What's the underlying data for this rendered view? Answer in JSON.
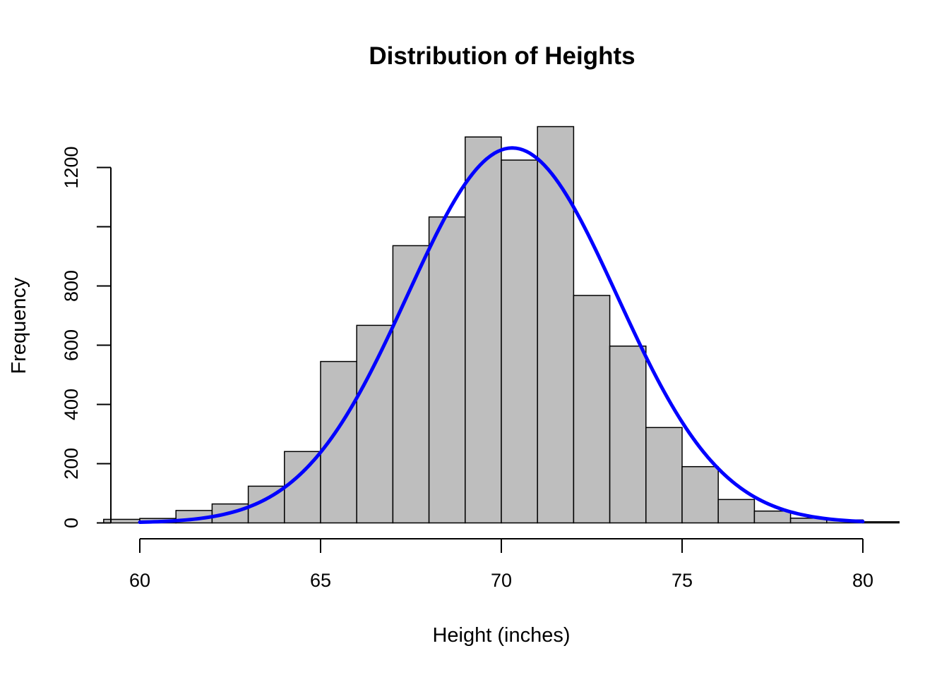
{
  "chart_data": {
    "type": "bar",
    "title": "Distribution of Heights",
    "xlabel": "Height (inches)",
    "ylabel": "Frequency",
    "xlim": [
      59.2,
      80.8
    ],
    "ylim": [
      0,
      1340
    ],
    "x_ticks": [
      60,
      65,
      70,
      75,
      80
    ],
    "y_ticks": [
      0,
      200,
      400,
      600,
      800,
      1000,
      1200
    ],
    "y_tick_labels": [
      "0",
      "200",
      "400",
      "600",
      "800",
      "",
      "1200"
    ],
    "bin_width": 1,
    "bins": [
      {
        "start": 59,
        "count": 12
      },
      {
        "start": 60,
        "count": 15
      },
      {
        "start": 61,
        "count": 42
      },
      {
        "start": 62,
        "count": 64
      },
      {
        "start": 63,
        "count": 124
      },
      {
        "start": 64,
        "count": 241
      },
      {
        "start": 65,
        "count": 545
      },
      {
        "start": 66,
        "count": 667
      },
      {
        "start": 67,
        "count": 936
      },
      {
        "start": 68,
        "count": 1033
      },
      {
        "start": 69,
        "count": 1303
      },
      {
        "start": 70,
        "count": 1225
      },
      {
        "start": 71,
        "count": 1338
      },
      {
        "start": 72,
        "count": 768
      },
      {
        "start": 73,
        "count": 597
      },
      {
        "start": 74,
        "count": 322
      },
      {
        "start": 75,
        "count": 190
      },
      {
        "start": 76,
        "count": 79
      },
      {
        "start": 77,
        "count": 40
      },
      {
        "start": 78,
        "count": 16
      },
      {
        "start": 79,
        "count": 10
      },
      {
        "start": 80,
        "count": 4
      }
    ],
    "density_curve": {
      "type": "normal",
      "mean": 70.3,
      "sd": 2.9,
      "peak": 1266,
      "x_range": [
        60,
        80
      ],
      "color": "#0000ff"
    },
    "bar_color": "#bebebe",
    "grid": false,
    "legend": "none"
  }
}
